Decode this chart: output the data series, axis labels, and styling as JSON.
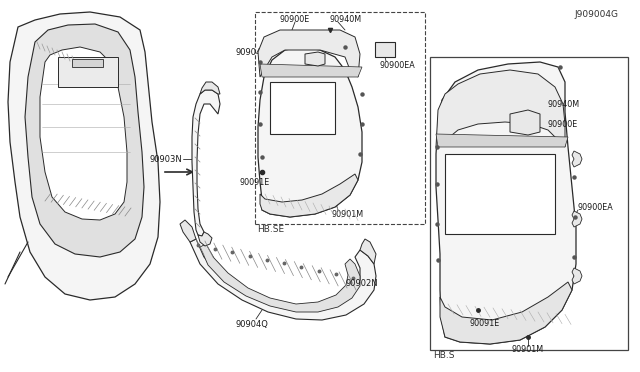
{
  "background_color": "#ffffff",
  "figure_id": "J909004G",
  "box1_label": "HB.SE",
  "box2_label": "HB.S",
  "line_color": "#2a2a2a",
  "text_color": "#1a1a1a",
  "light_fill": "#f5f5f5",
  "medium_fill": "#e8e8e8",
  "dark_fill": "#cccccc"
}
